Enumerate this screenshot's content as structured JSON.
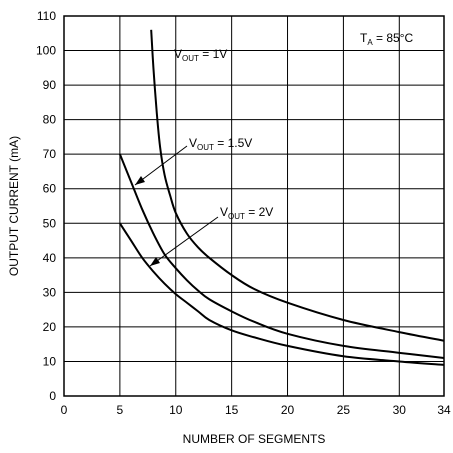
{
  "chart_data": {
    "type": "line",
    "title": "",
    "xlabel": "NUMBER OF SEGMENTS",
    "ylabel": "OUTPUT CURRENT (mA)",
    "xlim": [
      0,
      34
    ],
    "ylim": [
      0,
      110
    ],
    "xticks": [
      0,
      5,
      10,
      15,
      20,
      25,
      30,
      34
    ],
    "yticks": [
      0,
      10,
      20,
      30,
      40,
      50,
      60,
      70,
      80,
      90,
      100,
      110
    ],
    "grid": true,
    "condition": {
      "main": "T",
      "sub": "A",
      "tail": " = 85°C"
    },
    "series": [
      {
        "label_main": "V",
        "label_sub": "OUT",
        "label_tail": " = 1V",
        "x": [
          7.8,
          8.0,
          8.3,
          8.6,
          9.0,
          9.5,
          10.0,
          11.0,
          12.0,
          13.0,
          15.0,
          17.0,
          20.0,
          25.0,
          30.0,
          34.0
        ],
        "y": [
          106,
          95,
          82,
          72,
          64,
          58,
          53,
          47,
          43,
          40,
          35,
          31,
          27,
          22,
          18.5,
          16
        ]
      },
      {
        "label_main": "V",
        "label_sub": "OUT",
        "label_tail": " = 1.5V",
        "x": [
          5.0,
          6.0,
          7.0,
          8.0,
          9.0,
          10.0,
          11.0,
          12.0,
          13.0,
          15.0,
          17.0,
          20.0,
          25.0,
          30.0,
          34.0
        ],
        "y": [
          70,
          62,
          54,
          47,
          41,
          37,
          33.5,
          30.5,
          28,
          24.5,
          21.5,
          18,
          14.5,
          12.5,
          11
        ]
      },
      {
        "label_main": "V",
        "label_sub": "OUT",
        "label_tail": " = 2V",
        "x": [
          5.0,
          6.0,
          7.0,
          8.0,
          9.0,
          10.0,
          11.0,
          12.0,
          13.0,
          15.0,
          17.0,
          20.0,
          25.0,
          30.0,
          34.0
        ],
        "y": [
          50,
          45,
          40,
          36,
          32.5,
          29.5,
          27,
          24.5,
          22,
          19,
          17,
          14.5,
          11.5,
          10,
          9
        ]
      }
    ]
  }
}
